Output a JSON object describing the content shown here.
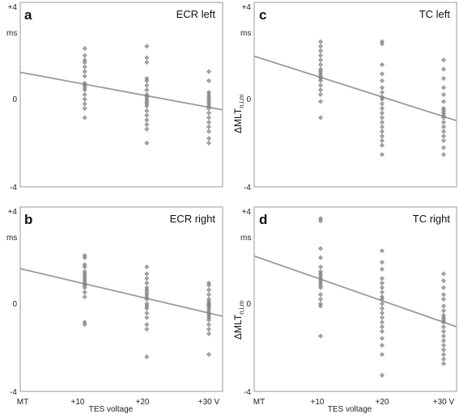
{
  "chart_data": [
    {
      "type": "scatter",
      "letter": "a",
      "title": "ECR left",
      "ylabel": "",
      "unit": "ms",
      "ylim": [
        -4,
        4
      ],
      "yticks": [
        "+4",
        "0",
        "-4"
      ],
      "categories": [
        "MT",
        "+10",
        "+20",
        "+30 V"
      ],
      "fit_line": {
        "x": [
          0,
          30
        ],
        "y": [
          0.95,
          -0.55
        ]
      },
      "x": [
        10,
        10,
        10,
        10,
        10,
        10,
        10,
        10,
        10,
        10,
        10,
        10,
        10,
        10,
        10,
        10,
        20,
        20,
        20,
        20,
        20,
        20,
        20,
        20,
        20,
        20,
        20,
        20,
        20,
        20,
        20,
        20,
        20,
        20,
        20,
        30,
        30,
        30,
        30,
        30,
        30,
        30,
        30,
        30,
        30,
        30,
        30,
        30,
        30,
        30,
        30,
        30
      ],
      "y": [
        2.0,
        1.7,
        1.5,
        1.4,
        1.2,
        1.0,
        0.8,
        0.5,
        0.4,
        0.3,
        0.2,
        0.0,
        -0.2,
        -0.4,
        -0.6,
        -1.0,
        2.1,
        1.6,
        1.4,
        0.7,
        0.6,
        0.4,
        0.2,
        0.0,
        -0.1,
        -0.2,
        -0.3,
        -0.4,
        -0.5,
        -0.7,
        -0.9,
        -1.1,
        -1.3,
        -1.5,
        -2.1,
        1.0,
        0.6,
        0.1,
        0.0,
        -0.1,
        -0.2,
        -0.3,
        -0.4,
        -0.5,
        -0.6,
        -0.8,
        -1.0,
        -1.2,
        -1.4,
        -1.6,
        -1.9,
        -2.1
      ]
    },
    {
      "type": "scatter",
      "letter": "c",
      "title": "TC left",
      "ylabel": "ΔMLT",
      "ylabel_sub": "n,i,m",
      "unit": "ms",
      "ylim": [
        -4,
        4
      ],
      "yticks": [
        "+4",
        "0",
        "-4"
      ],
      "categories": [
        "MT",
        "+10",
        "+20",
        "+30 V"
      ],
      "fit_line": {
        "x": [
          0,
          30
        ],
        "y": [
          1.6,
          -0.95
        ]
      },
      "x": [
        10,
        10,
        10,
        10,
        10,
        10,
        10,
        10,
        10,
        10,
        10,
        10,
        10,
        10,
        10,
        10,
        10,
        20,
        20,
        20,
        20,
        20,
        20,
        20,
        20,
        20,
        20,
        20,
        20,
        20,
        20,
        20,
        20,
        20,
        20,
        20,
        20,
        30,
        30,
        30,
        30,
        30,
        30,
        30,
        30,
        30,
        30,
        30,
        30,
        30,
        30,
        30,
        30,
        30,
        30
      ],
      "y": [
        2.3,
        2.1,
        1.9,
        1.7,
        1.5,
        1.3,
        1.1,
        1.0,
        0.9,
        0.8,
        0.7,
        0.6,
        0.4,
        0.2,
        0.0,
        -0.3,
        -1.0,
        2.3,
        2.2,
        1.3,
        0.9,
        0.6,
        0.3,
        0.1,
        -0.1,
        -0.2,
        -0.4,
        -0.6,
        -0.8,
        -1.0,
        -1.2,
        -1.4,
        -1.6,
        -1.8,
        -2.0,
        -2.2,
        -2.6,
        1.5,
        1.1,
        0.7,
        0.3,
        0.0,
        -0.3,
        -0.6,
        -0.7,
        -0.8,
        -0.9,
        -1.0,
        -1.2,
        -1.4,
        -1.6,
        -1.8,
        -2.0,
        -2.3,
        -2.6
      ]
    },
    {
      "type": "scatter",
      "letter": "b",
      "title": "ECR right",
      "ylabel": "",
      "unit": "ms",
      "ylim": [
        -4,
        4
      ],
      "yticks": [
        "+4",
        "0",
        "-4"
      ],
      "categories": [
        "MT",
        "+10",
        "+20",
        "+30 V"
      ],
      "fit_line": {
        "x": [
          0,
          30
        ],
        "y": [
          1.3,
          -0.6
        ]
      },
      "x": [
        10,
        10,
        10,
        10,
        10,
        10,
        10,
        10,
        10,
        10,
        10,
        10,
        10,
        10,
        10,
        10,
        20,
        20,
        20,
        20,
        20,
        20,
        20,
        20,
        20,
        20,
        20,
        20,
        20,
        20,
        20,
        20,
        20,
        20,
        30,
        30,
        30,
        30,
        30,
        30,
        30,
        30,
        30,
        30,
        30,
        30,
        30,
        30,
        30,
        30,
        30,
        30,
        30
      ],
      "y": [
        1.9,
        1.8,
        1.5,
        1.4,
        1.2,
        1.1,
        1.0,
        0.9,
        0.8,
        0.7,
        0.6,
        0.5,
        0.3,
        0.1,
        -1.0,
        -1.1,
        1.4,
        1.1,
        0.9,
        0.7,
        0.5,
        0.4,
        0.2,
        0.1,
        0.0,
        -0.2,
        -0.3,
        -0.4,
        -0.6,
        -0.8,
        -1.1,
        -1.3,
        -2.5,
        0.3,
        0.7,
        0.6,
        0.4,
        0.2,
        0.0,
        -0.1,
        -0.2,
        -0.3,
        -0.4,
        -0.5,
        -0.6,
        -0.7,
        -0.8,
        -0.9,
        -1.1,
        -1.3,
        -1.5,
        -2.4,
        -0.25
      ]
    },
    {
      "type": "scatter",
      "letter": "d",
      "title": "TC right",
      "ylabel": "ΔMLT",
      "ylabel_sub": "n,i,m",
      "unit": "ms",
      "ylim": [
        -4,
        4
      ],
      "yticks": [
        "+4",
        "0",
        "-4"
      ],
      "categories": [
        "MT",
        "+10",
        "+20",
        "+30 V"
      ],
      "fit_line": {
        "x": [
          0,
          30
        ],
        "y": [
          1.8,
          -1.0
        ]
      },
      "x": [
        10,
        10,
        10,
        10,
        10,
        10,
        10,
        10,
        10,
        10,
        10,
        10,
        10,
        10,
        10,
        10,
        10,
        10,
        20,
        20,
        20,
        20,
        20,
        20,
        20,
        20,
        20,
        20,
        20,
        20,
        20,
        20,
        20,
        20,
        20,
        20,
        20,
        20,
        30,
        30,
        30,
        30,
        30,
        30,
        30,
        30,
        30,
        30,
        30,
        30,
        30,
        30,
        30,
        30,
        30,
        30,
        30,
        30
      ],
      "y": [
        3.5,
        3.4,
        2.2,
        1.8,
        1.4,
        1.2,
        1.1,
        1.0,
        0.9,
        0.8,
        0.7,
        0.6,
        0.5,
        0.2,
        0.0,
        -0.2,
        -0.3,
        -1.6,
        2.1,
        1.6,
        1.3,
        0.9,
        0.7,
        0.5,
        0.3,
        0.1,
        0.0,
        -0.2,
        -0.4,
        -0.6,
        -0.8,
        -1.0,
        -1.2,
        -1.4,
        -1.7,
        -2.0,
        -2.4,
        -3.3,
        1.1,
        0.8,
        0.5,
        0.2,
        0.0,
        -0.3,
        -0.5,
        -0.7,
        -0.8,
        -0.9,
        -1.0,
        -1.2,
        -1.4,
        -1.6,
        -1.8,
        -2.0,
        -2.2,
        -2.4,
        -2.6,
        -2.8
      ]
    }
  ],
  "x_axis": {
    "left_ticks": [
      "MT",
      "+10",
      "+20",
      "+30 V"
    ],
    "right_ticks": [
      "MT",
      "+10",
      "+20",
      "+30 V"
    ],
    "left_label": "TES voltage",
    "right_label": "TES voltage"
  }
}
